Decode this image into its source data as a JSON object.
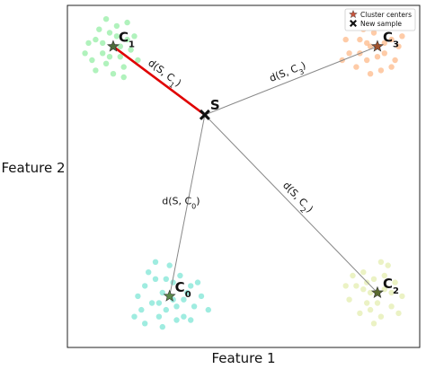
{
  "chart_data": {
    "type": "scatter",
    "title": "",
    "xlabel": "Feature 1",
    "ylabel": "Feature 2",
    "xlim": [
      0,
      100
    ],
    "ylim": [
      0,
      100
    ],
    "grid": false,
    "legend_position": "top-right",
    "legend": [
      {
        "label": "Cluster centers",
        "marker": "star",
        "color": "#c8553d"
      },
      {
        "label": "New sample",
        "marker": "x",
        "color": "#111111"
      }
    ],
    "clusters": [
      {
        "id": 0,
        "label_main": "C",
        "label_sub": "0",
        "color": "#7fe6d6",
        "center_color": "#5a8a4a",
        "center": [
          29,
          15
        ],
        "points": [
          [
            22,
            18
          ],
          [
            25,
            20
          ],
          [
            27,
            16
          ],
          [
            30,
            19
          ],
          [
            33,
            14
          ],
          [
            35,
            18
          ],
          [
            24,
            13
          ],
          [
            28,
            11
          ],
          [
            31,
            12
          ],
          [
            26,
            9
          ],
          [
            20,
            15
          ],
          [
            36,
            12
          ],
          [
            32,
            21
          ],
          [
            23,
            22
          ],
          [
            29,
            24
          ],
          [
            34,
            16
          ],
          [
            21,
            11
          ],
          [
            38,
            15
          ],
          [
            27,
            6
          ],
          [
            31,
            8
          ],
          [
            19,
            9
          ],
          [
            40,
            11
          ],
          [
            25,
            25
          ],
          [
            33,
            9
          ],
          [
            37,
            19
          ],
          [
            30,
            14
          ],
          [
            28,
            20
          ],
          [
            22,
            7
          ],
          [
            35,
            8
          ],
          [
            26,
            13
          ]
        ]
      },
      {
        "id": 1,
        "label_main": "C",
        "label_sub": "1",
        "color": "#96eea6",
        "center_color": "#4d6b3a",
        "center": [
          13,
          88
        ],
        "points": [
          [
            8,
            90
          ],
          [
            10,
            86
          ],
          [
            12,
            92
          ],
          [
            15,
            85
          ],
          [
            17,
            90
          ],
          [
            11,
            83
          ],
          [
            14,
            94
          ],
          [
            7,
            84
          ],
          [
            18,
            87
          ],
          [
            9,
            93
          ],
          [
            16,
            82
          ],
          [
            6,
            89
          ],
          [
            13,
            80
          ],
          [
            19,
            91
          ],
          [
            11,
            96
          ],
          [
            15,
            88
          ],
          [
            8,
            81
          ],
          [
            17,
            95
          ],
          [
            12,
            85
          ],
          [
            20,
            84
          ],
          [
            10,
            89
          ],
          [
            14,
            91
          ],
          [
            5,
            86
          ],
          [
            16,
            79
          ]
        ]
      },
      {
        "id": 2,
        "label_main": "C",
        "label_sub": "2",
        "color": "#e4eeb0",
        "center_color": "#5a6a30",
        "center": [
          88,
          16
        ],
        "points": [
          [
            82,
            18
          ],
          [
            85,
            13
          ],
          [
            87,
            20
          ],
          [
            90,
            17
          ],
          [
            92,
            12
          ],
          [
            84,
            22
          ],
          [
            89,
            9
          ],
          [
            93,
            19
          ],
          [
            80,
            14
          ],
          [
            86,
            16
          ],
          [
            91,
            24
          ],
          [
            83,
            10
          ],
          [
            88,
            13
          ],
          [
            95,
            15
          ],
          [
            81,
            21
          ],
          [
            87,
            7
          ],
          [
            90,
            21
          ],
          [
            84,
            17
          ],
          [
            92,
            16
          ],
          [
            86,
            11
          ],
          [
            89,
            25
          ],
          [
            94,
            10
          ],
          [
            79,
            18
          ],
          [
            85,
            19
          ]
        ]
      },
      {
        "id": 3,
        "label_main": "C",
        "label_sub": "3",
        "color": "#fdb98a",
        "center_color": "#a0522d",
        "center": [
          88,
          88
        ],
        "points": [
          [
            80,
            86
          ],
          [
            83,
            90
          ],
          [
            85,
            84
          ],
          [
            87,
            92
          ],
          [
            90,
            86
          ],
          [
            92,
            90
          ],
          [
            82,
            82
          ],
          [
            86,
            88
          ],
          [
            89,
            81
          ],
          [
            93,
            84
          ],
          [
            84,
            93
          ],
          [
            91,
            94
          ],
          [
            79,
            90
          ],
          [
            88,
            85
          ],
          [
            94,
            88
          ],
          [
            81,
            94
          ],
          [
            86,
            80
          ],
          [
            95,
            91
          ],
          [
            83,
            86
          ],
          [
            90,
            89
          ],
          [
            87,
            96
          ],
          [
            92,
            82
          ],
          [
            85,
            89
          ],
          [
            78,
            84
          ]
        ]
      }
    ],
    "new_sample": {
      "label": "S",
      "x": 39,
      "y": 68
    },
    "distance_lines": [
      {
        "to": 0,
        "label_prefix": "d(S, C",
        "label_sub": "0",
        "label_suffix": ")",
        "color": "#888888",
        "highlight": false
      },
      {
        "to": 1,
        "label_prefix": "d(S, C",
        "label_sub": "1",
        "label_suffix": ")",
        "color": "#e00000",
        "highlight": true
      },
      {
        "to": 2,
        "label_prefix": "d(S, C",
        "label_sub": "2",
        "label_suffix": ")",
        "color": "#888888",
        "highlight": false
      },
      {
        "to": 3,
        "label_prefix": "d(S, C",
        "label_sub": "3",
        "label_suffix": ")",
        "color": "#888888",
        "highlight": false
      }
    ]
  }
}
